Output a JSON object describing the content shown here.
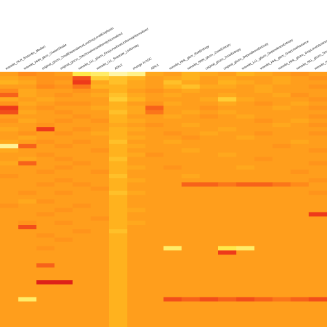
{
  "chart_data": {
    "type": "heatmap",
    "color_scale": [
      "#fff9c8",
      "#ffe84a",
      "#ffb21e",
      "#ff8a1a",
      "#ee3a1a",
      "#d81818"
    ],
    "columns": [
      "wavelet_HLH_firstorder_Median",
      "wavelet_HHH_glcm_ClusterShade",
      "original_glszm_SmallDependenceLowGrayLevelEmphasis",
      "original_glszm_SizeZoneNonUniformityNormalized",
      "wavelet_LLL_glszm_GrayLevelNonUniformityNormalized",
      "wavelet_LLL_firstorder_Uniformity",
      "ADC2",
      "change in ADC",
      "ADC1",
      "wavelet_HHL_glcm_RunEntropy",
      "wavelet_HHH_glszm_ZoneEntropy",
      "original_glszm_ZoneEntropy",
      "original_glszm_DependenceEntropy",
      "wavelet_LLL_glszm_DependenceEntropy",
      "wavelet_HHL_glcm_GrayLevelVariance",
      "wavelet_HHL_glszm_GrayLevelVariance",
      "wavelet_HLL_glszm_SmallDependenceEmphasis",
      "wavelet_HLH_glszm_LargeDependenceEmphasis"
    ],
    "rows": 60,
    "values": [
      [
        0.5,
        0.4,
        0.45,
        0.5,
        0.8,
        0.85,
        0.95,
        0.9,
        0.55,
        0.5,
        0.6,
        0.55,
        0.5,
        0.6,
        0.55,
        0.5,
        0.45,
        0.5
      ],
      [
        0.55,
        0.5,
        0.45,
        0.45,
        0.25,
        0.7,
        0.65,
        0.6,
        0.5,
        0.55,
        0.6,
        0.5,
        0.55,
        0.5,
        0.5,
        0.55,
        0.5,
        0.45
      ],
      [
        0.6,
        0.55,
        0.45,
        0.5,
        0.2,
        0.55,
        0.65,
        0.55,
        0.5,
        0.65,
        0.55,
        0.5,
        0.6,
        0.55,
        0.5,
        0.55,
        0.5,
        0.5
      ],
      [
        0.5,
        0.5,
        0.4,
        0.45,
        0.35,
        0.6,
        0.6,
        0.55,
        0.5,
        0.6,
        0.65,
        0.55,
        0.55,
        0.5,
        0.55,
        0.5,
        0.5,
        0.45
      ],
      [
        0.4,
        0.55,
        0.5,
        0.5,
        0.45,
        0.5,
        0.6,
        0.5,
        0.45,
        0.5,
        0.55,
        0.5,
        0.5,
        0.5,
        0.55,
        0.5,
        0.5,
        0.5
      ],
      [
        0.3,
        0.55,
        0.5,
        0.45,
        0.5,
        0.55,
        0.65,
        0.55,
        0.5,
        0.55,
        0.5,
        0.5,
        0.55,
        0.5,
        0.5,
        0.55,
        0.45,
        0.5
      ],
      [
        0.55,
        0.5,
        0.55,
        0.5,
        0.5,
        0.5,
        0.7,
        0.6,
        0.5,
        0.5,
        0.5,
        0.55,
        0.7,
        0.55,
        0.5,
        0.5,
        0.5,
        0.45
      ],
      [
        0.45,
        0.55,
        0.5,
        0.45,
        0.45,
        0.5,
        0.6,
        0.5,
        0.45,
        0.55,
        0.5,
        0.5,
        0.55,
        0.5,
        0.45,
        0.5,
        0.55,
        0.5
      ],
      [
        0.2,
        0.5,
        0.45,
        0.5,
        0.5,
        0.55,
        0.6,
        0.55,
        0.3,
        0.5,
        0.5,
        0.45,
        0.5,
        0.5,
        0.5,
        0.55,
        0.5,
        0.45
      ],
      [
        0.25,
        0.55,
        0.5,
        0.45,
        0.5,
        0.5,
        0.65,
        0.55,
        0.35,
        0.5,
        0.55,
        0.5,
        0.55,
        0.5,
        0.5,
        0.5,
        0.5,
        0.5
      ],
      [
        0.5,
        0.5,
        0.5,
        0.5,
        0.45,
        0.5,
        0.6,
        0.5,
        0.5,
        0.55,
        0.5,
        0.45,
        0.5,
        0.55,
        0.5,
        0.5,
        0.5,
        0.45
      ],
      [
        0.45,
        0.55,
        0.5,
        0.45,
        0.5,
        0.45,
        0.6,
        0.55,
        0.5,
        0.5,
        0.5,
        0.5,
        0.5,
        0.5,
        0.45,
        0.5,
        0.55,
        0.5
      ],
      [
        0.5,
        0.5,
        0.45,
        0.5,
        0.5,
        0.5,
        0.55,
        0.5,
        0.45,
        0.5,
        0.55,
        0.5,
        0.5,
        0.5,
        0.5,
        0.55,
        0.5,
        0.45
      ],
      [
        0.55,
        0.5,
        0.2,
        0.5,
        0.45,
        0.5,
        0.6,
        0.55,
        0.5,
        0.5,
        0.5,
        0.5,
        0.55,
        0.5,
        0.5,
        0.5,
        0.5,
        0.5
      ],
      [
        0.5,
        0.45,
        0.5,
        0.45,
        0.5,
        0.55,
        0.6,
        0.5,
        0.5,
        0.45,
        0.5,
        0.55,
        0.5,
        0.5,
        0.45,
        0.5,
        0.5,
        0.45
      ],
      [
        0.5,
        0.55,
        0.5,
        0.5,
        0.5,
        0.5,
        0.6,
        0.55,
        0.5,
        0.5,
        0.45,
        0.5,
        0.5,
        0.55,
        0.5,
        0.5,
        0.5,
        0.5
      ],
      [
        0.55,
        0.5,
        0.45,
        0.5,
        0.45,
        0.5,
        0.65,
        0.5,
        0.5,
        0.55,
        0.5,
        0.5,
        0.5,
        0.5,
        0.5,
        0.5,
        0.55,
        0.5
      ],
      [
        0.92,
        0.3,
        0.5,
        0.45,
        0.5,
        0.5,
        0.6,
        0.55,
        0.5,
        0.5,
        0.5,
        0.5,
        0.5,
        0.5,
        0.5,
        0.45,
        0.5,
        0.5
      ],
      [
        0.55,
        0.5,
        0.5,
        0.5,
        0.5,
        0.45,
        0.6,
        0.5,
        0.5,
        0.5,
        0.55,
        0.5,
        0.5,
        0.5,
        0.5,
        0.5,
        0.5,
        0.45
      ],
      [
        0.5,
        0.5,
        0.45,
        0.5,
        0.5,
        0.5,
        0.6,
        0.55,
        0.45,
        0.5,
        0.5,
        0.5,
        0.55,
        0.5,
        0.5,
        0.5,
        0.5,
        0.5
      ],
      [
        0.5,
        0.55,
        0.5,
        0.45,
        0.5,
        0.5,
        0.65,
        0.5,
        0.5,
        0.5,
        0.5,
        0.5,
        0.5,
        0.5,
        0.45,
        0.5,
        0.5,
        0.5
      ],
      [
        0.55,
        0.3,
        0.5,
        0.5,
        0.45,
        0.5,
        0.6,
        0.5,
        0.5,
        0.5,
        0.5,
        0.5,
        0.5,
        0.5,
        0.5,
        0.5,
        0.5,
        0.45
      ],
      [
        0.5,
        0.5,
        0.5,
        0.45,
        0.5,
        0.5,
        0.6,
        0.55,
        0.5,
        0.45,
        0.5,
        0.5,
        0.5,
        0.55,
        0.5,
        0.5,
        0.5,
        0.5
      ],
      [
        0.5,
        0.5,
        0.45,
        0.5,
        0.5,
        0.45,
        0.6,
        0.5,
        0.5,
        0.5,
        0.5,
        0.5,
        0.5,
        0.5,
        0.5,
        0.5,
        0.45,
        0.5
      ],
      [
        0.45,
        0.5,
        0.5,
        0.5,
        0.5,
        0.5,
        0.65,
        0.5,
        0.5,
        0.5,
        0.55,
        0.5,
        0.5,
        0.5,
        0.5,
        0.5,
        0.5,
        0.5
      ],
      [
        0.5,
        0.5,
        0.5,
        0.45,
        0.5,
        0.5,
        0.6,
        0.55,
        0.5,
        0.5,
        0.5,
        0.5,
        0.5,
        0.5,
        0.5,
        0.5,
        0.5,
        0.45
      ],
      [
        0.5,
        0.5,
        0.45,
        0.5,
        0.45,
        0.5,
        0.6,
        0.5,
        0.5,
        0.5,
        0.3,
        0.3,
        0.35,
        0.3,
        0.3,
        0.35,
        0.4,
        0.5
      ],
      [
        0.5,
        0.5,
        0.5,
        0.5,
        0.5,
        0.45,
        0.6,
        0.5,
        0.5,
        0.5,
        0.5,
        0.5,
        0.5,
        0.5,
        0.5,
        0.5,
        0.5,
        0.5
      ],
      [
        0.5,
        0.45,
        0.5,
        0.45,
        0.5,
        0.5,
        0.65,
        0.55,
        0.5,
        0.5,
        0.5,
        0.5,
        0.5,
        0.5,
        0.5,
        0.5,
        0.5,
        0.45
      ],
      [
        0.5,
        0.5,
        0.5,
        0.5,
        0.5,
        0.5,
        0.6,
        0.5,
        0.5,
        0.5,
        0.5,
        0.5,
        0.5,
        0.5,
        0.5,
        0.5,
        0.5,
        0.5
      ],
      [
        0.5,
        0.55,
        0.45,
        0.5,
        0.5,
        0.5,
        0.6,
        0.5,
        0.5,
        0.5,
        0.5,
        0.5,
        0.5,
        0.5,
        0.5,
        0.5,
        0.5,
        0.5
      ],
      [
        0.45,
        0.5,
        0.5,
        0.5,
        0.45,
        0.5,
        0.6,
        0.5,
        0.5,
        0.5,
        0.5,
        0.5,
        0.5,
        0.5,
        0.5,
        0.5,
        0.5,
        0.5
      ],
      [
        0.5,
        0.5,
        0.5,
        0.45,
        0.5,
        0.5,
        0.6,
        0.55,
        0.5,
        0.5,
        0.5,
        0.5,
        0.5,
        0.5,
        0.5,
        0.5,
        0.5,
        0.5
      ],
      [
        0.5,
        0.5,
        0.45,
        0.5,
        0.5,
        0.5,
        0.6,
        0.5,
        0.5,
        0.5,
        0.5,
        0.5,
        0.5,
        0.5,
        0.5,
        0.5,
        0.5,
        0.2
      ],
      [
        0.5,
        0.5,
        0.5,
        0.5,
        0.5,
        0.45,
        0.6,
        0.5,
        0.5,
        0.5,
        0.5,
        0.5,
        0.5,
        0.5,
        0.5,
        0.5,
        0.5,
        0.5
      ],
      [
        0.5,
        0.45,
        0.5,
        0.45,
        0.5,
        0.5,
        0.6,
        0.55,
        0.5,
        0.5,
        0.5,
        0.5,
        0.5,
        0.5,
        0.5,
        0.5,
        0.5,
        0.5
      ],
      [
        0.5,
        0.25,
        0.5,
        0.5,
        0.5,
        0.5,
        0.6,
        0.5,
        0.5,
        0.5,
        0.5,
        0.5,
        0.5,
        0.5,
        0.5,
        0.5,
        0.5,
        0.5
      ],
      [
        0.5,
        0.5,
        0.5,
        0.5,
        0.45,
        0.5,
        0.65,
        0.5,
        0.5,
        0.5,
        0.5,
        0.5,
        0.5,
        0.5,
        0.5,
        0.5,
        0.5,
        0.5
      ],
      [
        0.5,
        0.5,
        0.45,
        0.5,
        0.5,
        0.5,
        0.6,
        0.5,
        0.5,
        0.5,
        0.5,
        0.5,
        0.5,
        0.5,
        0.5,
        0.5,
        0.5,
        0.5
      ],
      [
        0.5,
        0.5,
        0.5,
        0.45,
        0.5,
        0.5,
        0.6,
        0.5,
        0.5,
        0.5,
        0.5,
        0.5,
        0.5,
        0.5,
        0.5,
        0.5,
        0.5,
        0.5
      ],
      [
        0.5,
        0.5,
        0.5,
        0.5,
        0.5,
        0.5,
        0.6,
        0.5,
        0.5,
        0.5,
        0.5,
        0.5,
        0.5,
        0.5,
        0.5,
        0.5,
        0.5,
        0.5
      ],
      [
        0.5,
        0.5,
        0.45,
        0.5,
        0.5,
        0.5,
        0.6,
        0.5,
        0.5,
        0.85,
        0.5,
        0.5,
        0.8,
        0.85,
        0.5,
        0.5,
        0.5,
        0.5
      ],
      [
        0.5,
        0.5,
        0.5,
        0.5,
        0.5,
        0.5,
        0.6,
        0.5,
        0.5,
        0.5,
        0.5,
        0.5,
        0.2,
        0.5,
        0.5,
        0.5,
        0.5,
        0.5
      ],
      [
        0.5,
        0.5,
        0.5,
        0.5,
        0.5,
        0.5,
        0.6,
        0.5,
        0.5,
        0.5,
        0.5,
        0.5,
        0.5,
        0.5,
        0.5,
        0.5,
        0.5,
        0.5
      ],
      [
        0.5,
        0.5,
        0.5,
        0.5,
        0.5,
        0.5,
        0.6,
        0.5,
        0.5,
        0.5,
        0.5,
        0.5,
        0.5,
        0.5,
        0.5,
        0.5,
        0.5,
        0.5
      ],
      [
        0.5,
        0.5,
        0.3,
        0.5,
        0.5,
        0.5,
        0.6,
        0.5,
        0.5,
        0.5,
        0.5,
        0.5,
        0.5,
        0.5,
        0.5,
        0.5,
        0.5,
        0.5
      ],
      [
        0.5,
        0.5,
        0.5,
        0.5,
        0.5,
        0.5,
        0.6,
        0.5,
        0.5,
        0.5,
        0.5,
        0.5,
        0.5,
        0.5,
        0.5,
        0.5,
        0.5,
        0.5
      ],
      [
        0.5,
        0.5,
        0.5,
        0.5,
        0.5,
        0.5,
        0.6,
        0.5,
        0.5,
        0.5,
        0.5,
        0.5,
        0.5,
        0.5,
        0.5,
        0.5,
        0.5,
        0.5
      ],
      [
        0.5,
        0.5,
        0.5,
        0.5,
        0.5,
        0.5,
        0.6,
        0.5,
        0.5,
        0.5,
        0.5,
        0.5,
        0.5,
        0.5,
        0.5,
        0.5,
        0.5,
        0.5
      ],
      [
        0.5,
        0.5,
        0.05,
        0.05,
        0.5,
        0.5,
        0.6,
        0.5,
        0.5,
        0.5,
        0.5,
        0.5,
        0.5,
        0.5,
        0.5,
        0.5,
        0.5,
        0.5
      ],
      [
        0.5,
        0.5,
        0.5,
        0.5,
        0.5,
        0.5,
        0.6,
        0.5,
        0.5,
        0.5,
        0.5,
        0.5,
        0.5,
        0.5,
        0.5,
        0.5,
        0.5,
        0.5
      ],
      [
        0.5,
        0.5,
        0.5,
        0.5,
        0.5,
        0.5,
        0.6,
        0.5,
        0.5,
        0.5,
        0.5,
        0.5,
        0.5,
        0.5,
        0.5,
        0.5,
        0.5,
        0.5
      ],
      [
        0.5,
        0.5,
        0.5,
        0.5,
        0.5,
        0.5,
        0.6,
        0.5,
        0.5,
        0.5,
        0.5,
        0.5,
        0.5,
        0.5,
        0.5,
        0.5,
        0.5,
        0.5
      ],
      [
        0.5,
        0.85,
        0.5,
        0.5,
        0.5,
        0.5,
        0.6,
        0.5,
        0.5,
        0.25,
        0.3,
        0.25,
        0.3,
        0.25,
        0.3,
        0.35,
        0.3,
        0.25
      ],
      [
        0.5,
        0.5,
        0.5,
        0.5,
        0.5,
        0.5,
        0.6,
        0.5,
        0.5,
        0.5,
        0.5,
        0.5,
        0.5,
        0.5,
        0.5,
        0.5,
        0.5,
        0.5
      ],
      [
        0.5,
        0.5,
        0.5,
        0.5,
        0.5,
        0.5,
        0.6,
        0.5,
        0.5,
        0.5,
        0.5,
        0.5,
        0.5,
        0.5,
        0.5,
        0.5,
        0.5,
        0.5
      ],
      [
        0.5,
        0.5,
        0.5,
        0.5,
        0.5,
        0.5,
        0.6,
        0.5,
        0.5,
        0.5,
        0.5,
        0.5,
        0.5,
        0.5,
        0.5,
        0.5,
        0.5,
        0.5
      ],
      [
        0.5,
        0.5,
        0.5,
        0.5,
        0.5,
        0.5,
        0.6,
        0.5,
        0.5,
        0.5,
        0.5,
        0.5,
        0.5,
        0.5,
        0.5,
        0.5,
        0.5,
        0.5
      ],
      [
        0.5,
        0.5,
        0.5,
        0.5,
        0.5,
        0.5,
        0.6,
        0.5,
        0.5,
        0.5,
        0.5,
        0.5,
        0.5,
        0.5,
        0.5,
        0.5,
        0.5,
        0.5
      ],
      [
        0.5,
        0.5,
        0.5,
        0.5,
        0.5,
        0.5,
        0.6,
        0.5,
        0.5,
        0.5,
        0.5,
        0.5,
        0.5,
        0.5,
        0.5,
        0.5,
        0.5,
        0.5
      ]
    ]
  }
}
